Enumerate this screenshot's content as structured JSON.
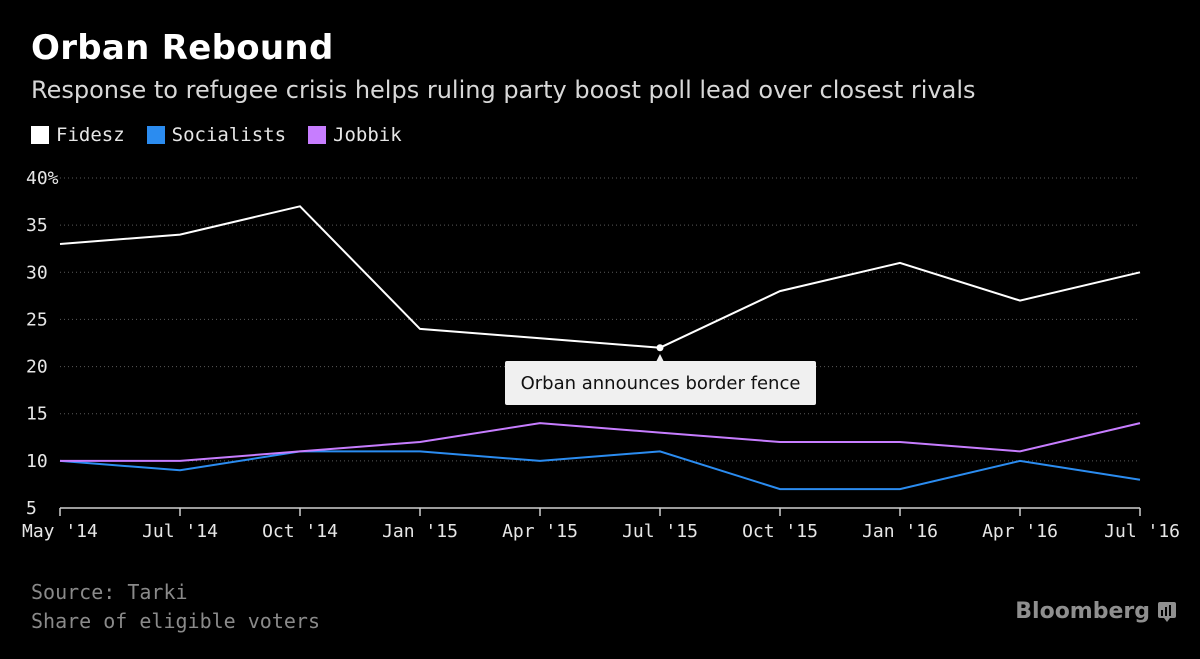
{
  "chart_data": {
    "type": "line",
    "title": "Orban Rebound",
    "subtitle": "Response to refugee crisis helps ruling party boost poll lead over closest rivals",
    "x": [
      "May '14",
      "Jul '14",
      "Oct '14",
      "Jan '15",
      "Apr '15",
      "Jul '15",
      "Oct '15",
      "Jan '16",
      "Apr '16",
      "Jul '16"
    ],
    "series": [
      {
        "name": "Fidesz",
        "color": "#ffffff",
        "values": [
          33,
          34,
          37,
          24,
          23,
          22,
          28,
          31,
          27,
          30
        ]
      },
      {
        "name": "Socialists",
        "color": "#2b8cf0",
        "values": [
          10,
          9,
          11,
          11,
          10,
          11,
          7,
          7,
          10,
          8
        ]
      },
      {
        "name": "Jobbik",
        "color": "#c77dff",
        "values": [
          10,
          10,
          11,
          12,
          14,
          13,
          12,
          12,
          11,
          14
        ]
      }
    ],
    "ylim": [
      5,
      40
    ],
    "yticks": [
      "5",
      "10",
      "15",
      "20",
      "25",
      "30",
      "35",
      "40%"
    ],
    "grid": true,
    "legend": "top-left",
    "annotation": {
      "text": "Orban announces border fence",
      "x": "Jul '15",
      "series": "Fidesz",
      "value": 22
    }
  },
  "footer": {
    "source": "Source: Tarki",
    "note": "Share of eligible voters",
    "brand": "Bloomberg"
  }
}
